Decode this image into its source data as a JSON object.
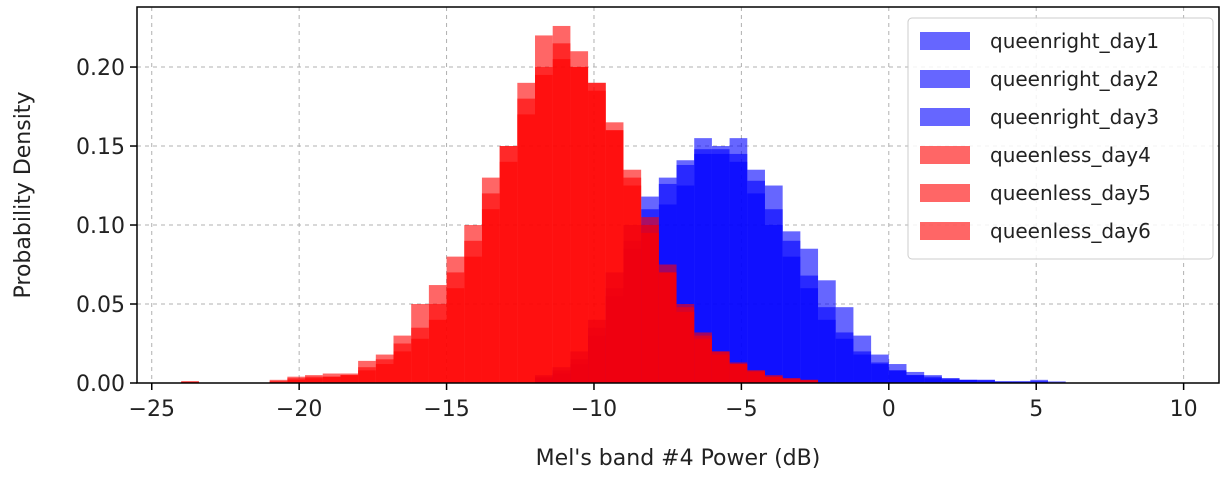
{
  "chart_data": {
    "type": "histogram",
    "title": "",
    "xlabel": "Mel's band #4 Power (dB)",
    "ylabel": "Probability Density",
    "xlim": [
      -25.5,
      11.2
    ],
    "ylim": [
      0,
      0.238
    ],
    "xticks": [
      -25,
      -20,
      -15,
      -10,
      -5,
      0,
      5,
      10
    ],
    "xtick_labels": [
      "−25",
      "−20",
      "−15",
      "−10",
      "−5",
      "0",
      "5",
      "10"
    ],
    "yticks": [
      0.0,
      0.05,
      0.1,
      0.15,
      0.2
    ],
    "ytick_labels": [
      "0.00",
      "0.05",
      "0.10",
      "0.15",
      "0.20"
    ],
    "grid": true,
    "legend_position": "top-right",
    "series": [
      {
        "name": "queenright_day1",
        "color": "#0000ff",
        "opacity": 0.6,
        "bin_width": 0.6,
        "x": [
          -12,
          -11.4,
          -10.8,
          -10.2,
          -9.6,
          -9,
          -8.4,
          -7.8,
          -7.2,
          -6.6,
          -6,
          -5.4,
          -4.8,
          -4.2,
          -3.6,
          -3,
          -2.4,
          -1.8,
          -1.2,
          -0.6,
          0,
          0.6,
          1.2,
          1.8,
          2.4,
          3,
          3.6,
          4.2,
          4.8
        ],
        "values": [
          0.005,
          0.01,
          0.02,
          0.04,
          0.07,
          0.1,
          0.118,
          0.13,
          0.141,
          0.148,
          0.148,
          0.14,
          0.12,
          0.1,
          0.08,
          0.06,
          0.04,
          0.028,
          0.018,
          0.012,
          0.008,
          0.005,
          0.003,
          0.002,
          0.002,
          0.001,
          0.001,
          0.001,
          0.001
        ]
      },
      {
        "name": "queenright_day2",
        "color": "#0000ff",
        "opacity": 0.6,
        "bin_width": 0.6,
        "x": [
          -12,
          -11.4,
          -10.8,
          -10.2,
          -9.6,
          -9,
          -8.4,
          -7.8,
          -7.2,
          -6.6,
          -6,
          -5.4,
          -4.8,
          -4.2,
          -3.6,
          -3,
          -2.4,
          -1.8,
          -1.2,
          -0.6,
          0,
          0.6,
          1.2,
          1.8,
          2.4,
          3,
          3.6,
          4.2,
          4.8
        ],
        "values": [
          0.004,
          0.008,
          0.015,
          0.035,
          0.06,
          0.09,
          0.11,
          0.126,
          0.138,
          0.145,
          0.15,
          0.145,
          0.128,
          0.11,
          0.09,
          0.068,
          0.048,
          0.032,
          0.02,
          0.013,
          0.008,
          0.005,
          0.004,
          0.003,
          0.002,
          0.002,
          0.001,
          0.001,
          0.001
        ]
      },
      {
        "name": "queenright_day3",
        "color": "#0000ff",
        "opacity": 0.6,
        "bin_width": 0.6,
        "x": [
          -12,
          -11.4,
          -10.8,
          -10.2,
          -9.6,
          -9,
          -8.4,
          -7.8,
          -7.2,
          -6.6,
          -6,
          -5.4,
          -4.8,
          -4.2,
          -3.6,
          -3,
          -2.4,
          -1.8,
          -1.2,
          -0.6,
          0,
          0.6,
          1.2,
          1.8,
          2.4,
          3,
          3.6,
          4.2,
          4.8,
          5.4
        ],
        "values": [
          0.003,
          0.006,
          0.012,
          0.03,
          0.055,
          0.085,
          0.1,
          0.113,
          0.125,
          0.155,
          0.145,
          0.155,
          0.135,
          0.125,
          0.096,
          0.085,
          0.065,
          0.048,
          0.03,
          0.018,
          0.012,
          0.007,
          0.005,
          0.003,
          0.002,
          0.002,
          0.001,
          0.001,
          0.002,
          0.001
        ]
      },
      {
        "name": "queenless_day4",
        "color": "#ff0000",
        "opacity": 0.6,
        "bin_width": 0.6,
        "x": [
          -24,
          -21,
          -20.4,
          -19.8,
          -19.2,
          -18.6,
          -18,
          -17.4,
          -16.8,
          -16.2,
          -15.6,
          -15,
          -14.4,
          -13.8,
          -13.2,
          -12.6,
          -12,
          -11.4,
          -10.8,
          -10.2,
          -9.6,
          -9,
          -8.4,
          -7.8,
          -7.2,
          -6.6,
          -6,
          -5.4,
          -4.8,
          -4.2,
          -3.6,
          -3
        ],
        "values": [
          0.001,
          0.001,
          0.003,
          0.004,
          0.004,
          0.005,
          0.008,
          0.012,
          0.02,
          0.028,
          0.04,
          0.06,
          0.08,
          0.11,
          0.14,
          0.17,
          0.195,
          0.205,
          0.2,
          0.19,
          0.16,
          0.13,
          0.1,
          0.07,
          0.048,
          0.03,
          0.02,
          0.012,
          0.008,
          0.004,
          0.003,
          0.002
        ]
      },
      {
        "name": "queenless_day5",
        "color": "#ff0000",
        "opacity": 0.6,
        "bin_width": 0.6,
        "x": [
          -24,
          -21,
          -20.4,
          -19.8,
          -19.2,
          -18.6,
          -18,
          -17.4,
          -16.8,
          -16.2,
          -15.6,
          -15,
          -14.4,
          -13.8,
          -13.2,
          -12.6,
          -12,
          -11.4,
          -10.8,
          -10.2,
          -9.6,
          -9,
          -8.4,
          -7.8,
          -7.2,
          -6.6,
          -6,
          -5.4,
          -4.8,
          -4.2,
          -3.6,
          -3
        ],
        "values": [
          0.001,
          0.001,
          0.002,
          0.003,
          0.004,
          0.005,
          0.01,
          0.015,
          0.025,
          0.035,
          0.05,
          0.07,
          0.09,
          0.12,
          0.15,
          0.18,
          0.2,
          0.215,
          0.21,
          0.19,
          0.165,
          0.135,
          0.105,
          0.075,
          0.05,
          0.032,
          0.02,
          0.013,
          0.008,
          0.005,
          0.003,
          0.002
        ]
      },
      {
        "name": "queenless_day6",
        "color": "#ff0000",
        "opacity": 0.6,
        "bin_width": 0.6,
        "x": [
          -24,
          -21,
          -20.4,
          -19.8,
          -19.2,
          -18.6,
          -18,
          -17.4,
          -16.8,
          -16.2,
          -15.6,
          -15,
          -14.4,
          -13.8,
          -13.2,
          -12.6,
          -12,
          -11.4,
          -10.8,
          -10.2,
          -9.6,
          -9,
          -8.4,
          -7.8,
          -7.2,
          -6.6,
          -6,
          -5.4,
          -4.8,
          -4.2,
          -3.6,
          -3
        ],
        "values": [
          0.001,
          0.002,
          0.004,
          0.005,
          0.006,
          0.006,
          0.014,
          0.018,
          0.03,
          0.05,
          0.062,
          0.08,
          0.1,
          0.13,
          0.15,
          0.19,
          0.22,
          0.226,
          0.2,
          0.185,
          0.16,
          0.125,
          0.095,
          0.07,
          0.045,
          0.028,
          0.018,
          0.012,
          0.007,
          0.004,
          0.002,
          0.001
        ]
      }
    ]
  }
}
